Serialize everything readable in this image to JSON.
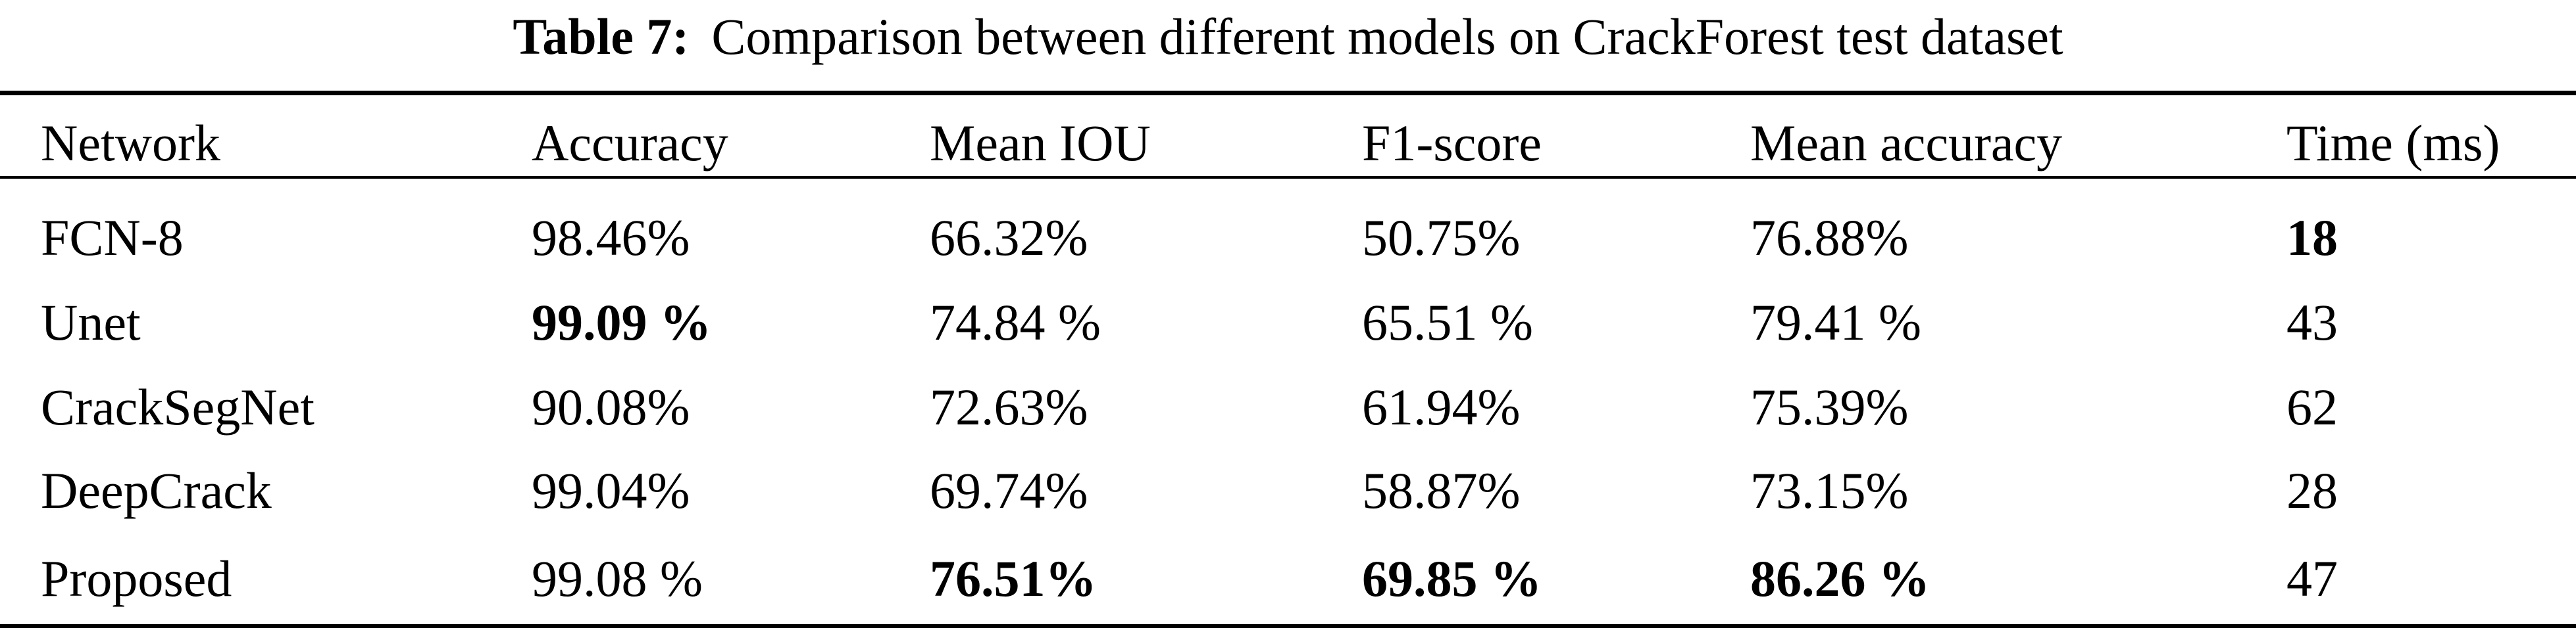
{
  "caption": {
    "label": "Table 7:",
    "text": "Comparison between different models on CrackForest test dataset"
  },
  "table": {
    "headers": [
      "Network",
      "Accuracy",
      "Mean IOU",
      "F1-score",
      "Mean accuracy",
      "Time (ms)"
    ],
    "rows": [
      {
        "cells": [
          "FCN-8",
          "98.46%",
          "66.32%",
          "50.75%",
          "76.88%",
          "18"
        ],
        "bold": [
          false,
          false,
          false,
          false,
          false,
          true
        ]
      },
      {
        "cells": [
          "Unet",
          "99.09 %",
          "74.84 %",
          "65.51 %",
          "79.41 %",
          "43"
        ],
        "bold": [
          false,
          true,
          false,
          false,
          false,
          false
        ]
      },
      {
        "cells": [
          "CrackSegNet",
          "90.08%",
          "72.63%",
          "61.94%",
          "75.39%",
          "62"
        ],
        "bold": [
          false,
          false,
          false,
          false,
          false,
          false
        ]
      },
      {
        "cells": [
          "DeepCrack",
          "99.04%",
          "69.74%",
          "58.87%",
          "73.15%",
          "28"
        ],
        "bold": [
          false,
          false,
          false,
          false,
          false,
          false
        ]
      },
      {
        "cells": [
          "Proposed",
          "99.08 %",
          "76.51%",
          "69.85 %",
          "86.26 %",
          "47"
        ],
        "bold": [
          false,
          false,
          true,
          true,
          true,
          false
        ]
      }
    ]
  }
}
